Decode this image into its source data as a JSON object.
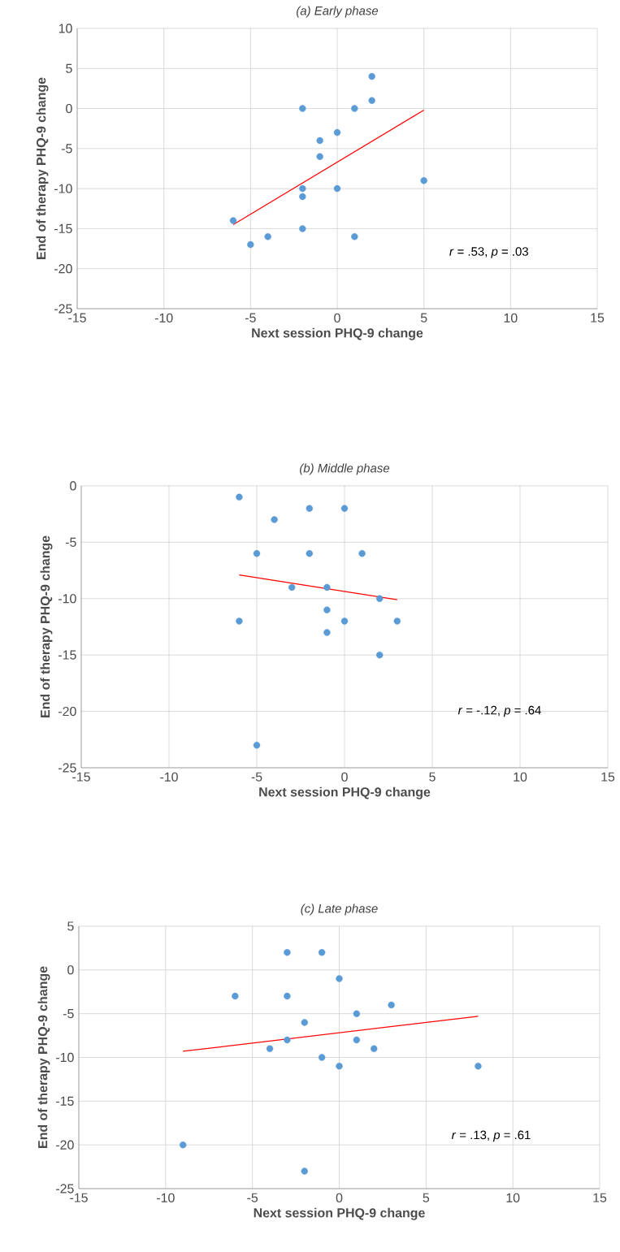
{
  "chart_data": [
    {
      "type": "scatter",
      "title": "(a) Early phase",
      "xlabel": "Next session PHQ-9 change",
      "ylabel": "End of therapy PHQ-9 change",
      "xlim": [
        -15,
        15
      ],
      "ylim": [
        -25,
        10
      ],
      "xticks": [
        -15,
        -10,
        -5,
        0,
        5,
        10,
        15
      ],
      "yticks": [
        -25,
        -20,
        -15,
        -10,
        -5,
        0,
        5,
        10
      ],
      "grid": true,
      "annotations": [
        "*r* = .53, *p* = .03"
      ],
      "series": [
        {
          "type": "scatter",
          "marker": "circle",
          "color": "#5b9bd5",
          "x": [
            2,
            2,
            1,
            -2,
            0,
            -1,
            -1,
            -2,
            0,
            5,
            -2,
            -6,
            -2,
            -4,
            1,
            -5
          ],
          "values": [
            4,
            1,
            0,
            0,
            -3,
            -4,
            -6,
            -10,
            -10,
            -9,
            -11,
            -14,
            -15,
            -16,
            -16,
            -17
          ]
        },
        {
          "type": "line",
          "marker": "none",
          "color": "#ff0000",
          "x": [
            -6,
            5
          ],
          "values": [
            -14.5,
            -0.2
          ]
        }
      ]
    },
    {
      "type": "scatter",
      "title": "(b) Middle phase",
      "xlabel": "Next session PHQ-9 change",
      "ylabel": "End of therapy PHQ-9 change",
      "xlim": [
        -15,
        15
      ],
      "ylim": [
        -25,
        0
      ],
      "xticks": [
        -15,
        -10,
        -5,
        0,
        5,
        10,
        15
      ],
      "yticks": [
        -25,
        -20,
        -15,
        -10,
        -5,
        0
      ],
      "grid": true,
      "annotations": [
        "*r* = -.12, *p* = .64"
      ],
      "series": [
        {
          "type": "scatter",
          "marker": "circle",
          "color": "#5b9bd5",
          "x": [
            -6,
            -4,
            -2,
            0,
            -5,
            -2,
            1,
            -3,
            -1,
            2,
            -6,
            -1,
            0,
            3,
            -1,
            2,
            -5
          ],
          "values": [
            -1,
            -3,
            -2,
            -2,
            -6,
            -6,
            -6,
            -9,
            -9,
            -10,
            -12,
            -11,
            -12,
            -12,
            -13,
            -15,
            -23
          ]
        },
        {
          "type": "line",
          "marker": "none",
          "color": "#ff0000",
          "x": [
            -6,
            3
          ],
          "values": [
            -7.9,
            -10.1
          ]
        }
      ]
    },
    {
      "type": "scatter",
      "title": "(c) Late phase",
      "xlabel": "Next session PHQ-9 change",
      "ylabel": "End of therapy PHQ-9 change",
      "xlim": [
        -15,
        15
      ],
      "ylim": [
        -25,
        5
      ],
      "xticks": [
        -15,
        -10,
        -5,
        0,
        5,
        10,
        15
      ],
      "yticks": [
        -25,
        -20,
        -15,
        -10,
        -5,
        0,
        5
      ],
      "grid": true,
      "annotations": [
        "*r* = .13, *p* = .61"
      ],
      "series": [
        {
          "type": "scatter",
          "marker": "circle",
          "color": "#5b9bd5",
          "x": [
            -3,
            -1,
            0,
            -6,
            -3,
            1,
            3,
            -2,
            -3,
            1,
            -4,
            2,
            -1,
            0,
            8,
            -9,
            -2
          ],
          "values": [
            2,
            2,
            -1,
            -3,
            -3,
            -5,
            -4,
            -6,
            -8,
            -8,
            -9,
            -9,
            -10,
            -11,
            -11,
            -20,
            -23
          ]
        },
        {
          "type": "line",
          "marker": "none",
          "color": "#ff0000",
          "x": [
            -9,
            8
          ],
          "values": [
            -9.3,
            -5.3
          ]
        }
      ]
    }
  ]
}
